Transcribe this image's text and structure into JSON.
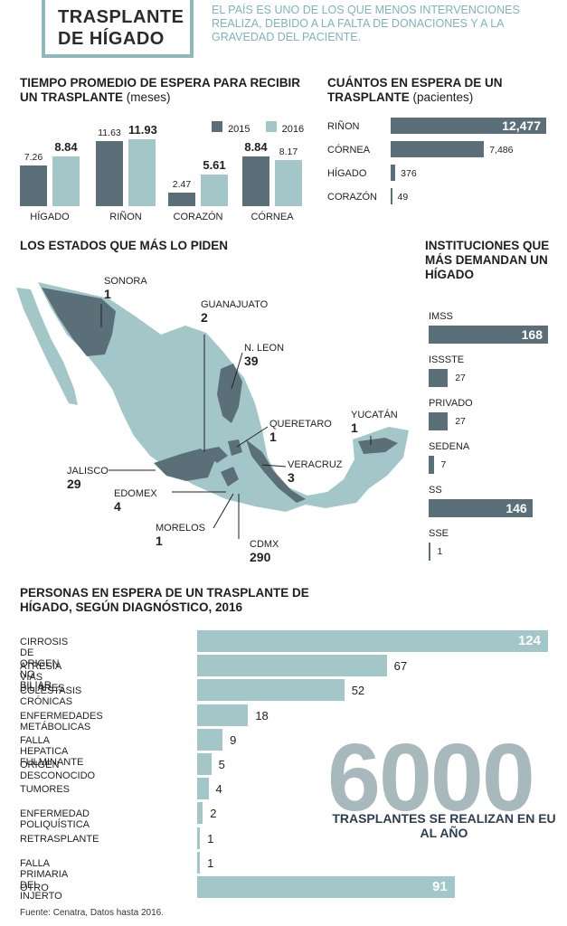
{
  "header": {
    "title_line1": "TRASPLANTE",
    "title_line2": "DE HÍGADO",
    "subtitle": "El país es uno de los que menos intervenciones realiza, debido a la falta de donaciones y a la gravedad del paciente."
  },
  "colors": {
    "dark": "#5b6f78",
    "light": "#a3c6c9",
    "map_base": "#a3c6c9",
    "map_dark": "#5b6f78"
  },
  "chart_data": [
    {
      "type": "bar",
      "title_main": "TIEMPO PROMEDIO DE ESPERA PARA RECIBIR UN TRASPLANTE",
      "title_unit": "(meses)",
      "categories": [
        "HÍGADO",
        "RIÑON",
        "CORAZÓN",
        "CÓRNEA"
      ],
      "series": [
        {
          "name": "2015",
          "values": [
            7.26,
            11.63,
            2.47,
            8.84
          ]
        },
        {
          "name": "2016",
          "values": [
            8.84,
            11.93,
            5.61,
            8.17
          ]
        }
      ],
      "value_labels": [
        [
          "7.26",
          "8.84"
        ],
        [
          "11.63",
          "11.93"
        ],
        [
          "2.47",
          "5.61"
        ],
        [
          "8.84",
          "8.17"
        ]
      ],
      "legend": "top-right"
    },
    {
      "type": "bar",
      "orientation": "horizontal",
      "title_main": "CUÁNTOS EN ESPERA DE UN TRASPLANTE",
      "title_unit": "(pacientes)",
      "categories": [
        "RIÑON",
        "CÓRNEA",
        "HÍGADO",
        "CORAZÓN"
      ],
      "values": [
        12477,
        7486,
        376,
        49
      ],
      "value_labels": [
        "12,477",
        "7,486",
        "376",
        "49"
      ]
    },
    {
      "type": "bar",
      "orientation": "horizontal",
      "title": "INSTITUCIONES QUE MÁS DEMANDAN UN HÍGADO",
      "categories": [
        "IMSS",
        "ISSSTE",
        "PRIVADO",
        "SEDENA",
        "SS",
        "SSE"
      ],
      "values": [
        168,
        27,
        27,
        7,
        146,
        1
      ],
      "value_labels": [
        "168",
        "27",
        "27",
        "7",
        "146",
        "1"
      ]
    },
    {
      "type": "bar",
      "orientation": "horizontal",
      "title": "PERSONAS EN ESPERA DE UN TRASPLANTE DE HÍGADO, SEGÚN DIAGNÓSTICO, 2016",
      "categories": [
        "CIRROSIS DE ORIGEN NO BILIAR",
        "ATRESIA VÍAS BILIARES",
        "COLESTASIS CRÓNICAS",
        "ENFERMEDADES METÁBOLICAS",
        "FALLA HEPATICA FULMINANTE",
        "ORIGEN DESCONOCIDO",
        "TUMORES",
        "ENFERMEDAD POLIQUÍSTICA",
        "RETRASPLANTE",
        "FALLA PRIMARIA DEL INJERTO",
        "OTRO"
      ],
      "values": [
        124,
        67,
        52,
        18,
        9,
        5,
        4,
        2,
        1,
        1,
        91
      ],
      "value_labels": [
        "124",
        "67",
        "52",
        "18",
        "9",
        "5",
        "4",
        "2",
        "1",
        "1",
        "91"
      ]
    }
  ],
  "map": {
    "title": "LOS ESTADOS QUE MÁS LO PIDEN",
    "states": [
      {
        "name": "SONORA",
        "value": "1"
      },
      {
        "name": "GUANAJUATO",
        "value": "2"
      },
      {
        "name": "N. LEON",
        "value": "39"
      },
      {
        "name": "QUERETARO",
        "value": "1"
      },
      {
        "name": "YUCATÁN",
        "value": "1"
      },
      {
        "name": "JALISCO",
        "value": "29"
      },
      {
        "name": "EDOMEX",
        "value": "4"
      },
      {
        "name": "VERACRUZ",
        "value": "3"
      },
      {
        "name": "MORELOS",
        "value": "1"
      },
      {
        "name": "CDMX",
        "value": "290"
      }
    ]
  },
  "highlight": {
    "number": "6000",
    "caption": "TRASPLANTES SE REALIZAN EN EU AL AÑO"
  },
  "source": "Fuente: Cenatra, Datos hasta 2016."
}
